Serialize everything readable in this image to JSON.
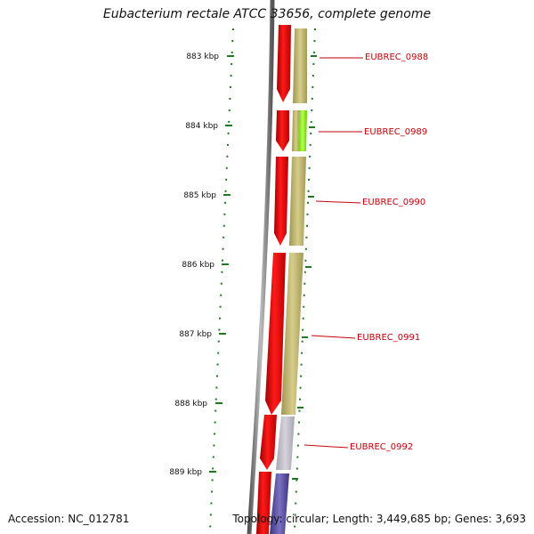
{
  "title": "Eubacterium rectale ATCC 33656, complete genome",
  "accession": "Accession: NC_012781",
  "topology": "Topology: circular; Length: 3,449,685 bp; Genes: 3,693",
  "ticks": [
    "883 kbp",
    "884 kbp",
    "885 kbp",
    "886 kbp",
    "887 kbp",
    "888 kbp",
    "889 kbp"
  ],
  "genes": [
    "EUBREC_0988",
    "EUBREC_0989",
    "EUBREC_0990",
    "EUBREC_0991",
    "EUBREC_0992"
  ],
  "colors": {
    "forward_cds": "#ff0000",
    "function_olive": "#c8bf7a",
    "function_lime": "#99ff33",
    "function_grey": "#c2bfc8",
    "function_purple": "#5a4ea0",
    "tick": "#1f7a1f",
    "label": "#c8000a",
    "backbone": "#888888"
  }
}
